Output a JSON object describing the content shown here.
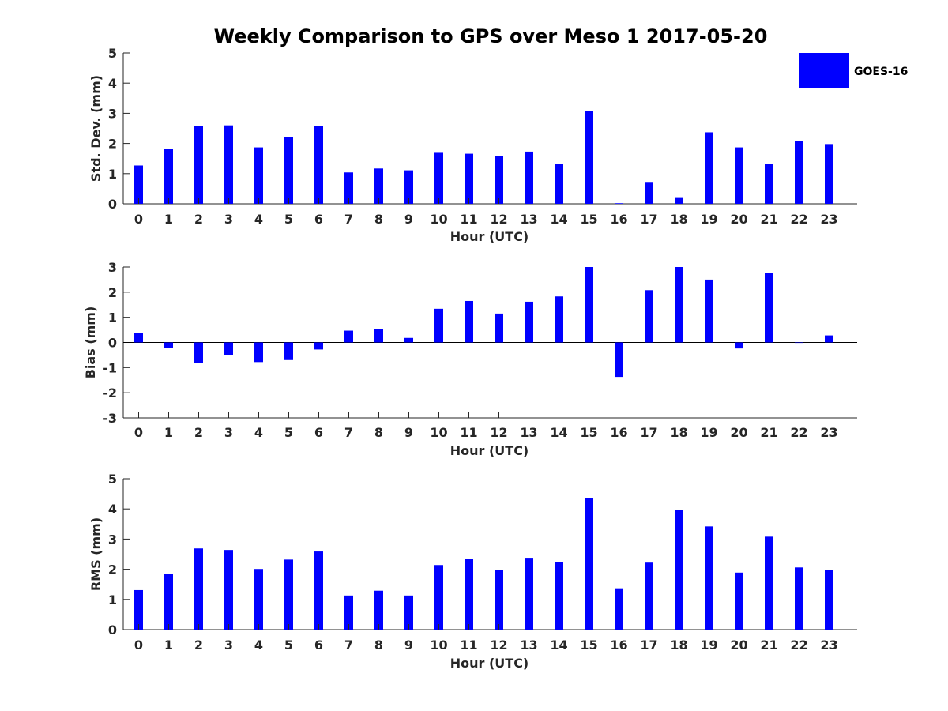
{
  "chart_data": {
    "title": "Weekly Comparison to GPS over Meso 1 2017-05-20",
    "legend": {
      "label": "GOES-16",
      "color": "#0000ff",
      "placement": "top-right"
    },
    "panels": [
      {
        "type": "bar",
        "ylabel": "Std. Dev. (mm)",
        "xlabel": "Hour (UTC)",
        "ylim": [
          0,
          5
        ],
        "yticks": [
          0,
          1,
          2,
          3,
          4,
          5
        ],
        "categories": [
          0,
          1,
          2,
          3,
          4,
          5,
          6,
          7,
          8,
          9,
          10,
          11,
          12,
          13,
          14,
          15,
          16,
          17,
          18,
          19,
          20,
          21,
          22,
          23
        ],
        "values": [
          1.27,
          1.82,
          2.58,
          2.6,
          1.87,
          2.2,
          2.57,
          1.04,
          1.17,
          1.11,
          1.69,
          1.66,
          1.58,
          1.73,
          1.32,
          3.07,
          0.02,
          0.7,
          0.22,
          2.37,
          1.87,
          1.32,
          2.08,
          1.98
        ],
        "color": "#0000ff"
      },
      {
        "type": "bar",
        "ylabel": "Bias (mm)",
        "xlabel": "Hour (UTC)",
        "ylim": [
          -3,
          3
        ],
        "yticks": [
          -3,
          -2,
          -1,
          0,
          1,
          2,
          3
        ],
        "categories": [
          0,
          1,
          2,
          3,
          4,
          5,
          6,
          7,
          8,
          9,
          10,
          11,
          12,
          13,
          14,
          15,
          16,
          17,
          18,
          19,
          20,
          21,
          22,
          23
        ],
        "values": [
          0.37,
          -0.22,
          -0.83,
          -0.49,
          -0.78,
          -0.7,
          -0.28,
          0.47,
          0.53,
          0.18,
          1.34,
          1.65,
          1.15,
          1.62,
          1.83,
          3.0,
          -1.37,
          2.08,
          3.0,
          2.5,
          -0.24,
          2.77,
          0.0,
          0.28
        ],
        "color": "#0000ff"
      },
      {
        "type": "bar",
        "ylabel": "RMS (mm)",
        "xlabel": "Hour (UTC)",
        "ylim": [
          0,
          5
        ],
        "yticks": [
          0,
          1,
          2,
          3,
          4,
          5
        ],
        "categories": [
          0,
          1,
          2,
          3,
          4,
          5,
          6,
          7,
          8,
          9,
          10,
          11,
          12,
          13,
          14,
          15,
          16,
          17,
          18,
          19,
          20,
          21,
          22,
          23
        ],
        "values": [
          1.31,
          1.84,
          2.69,
          2.64,
          2.01,
          2.32,
          2.59,
          1.13,
          1.29,
          1.13,
          2.14,
          2.34,
          1.97,
          2.38,
          2.25,
          4.36,
          1.37,
          2.22,
          3.97,
          3.42,
          1.89,
          3.08,
          2.06,
          1.98
        ],
        "color": "#0000ff"
      }
    ]
  }
}
